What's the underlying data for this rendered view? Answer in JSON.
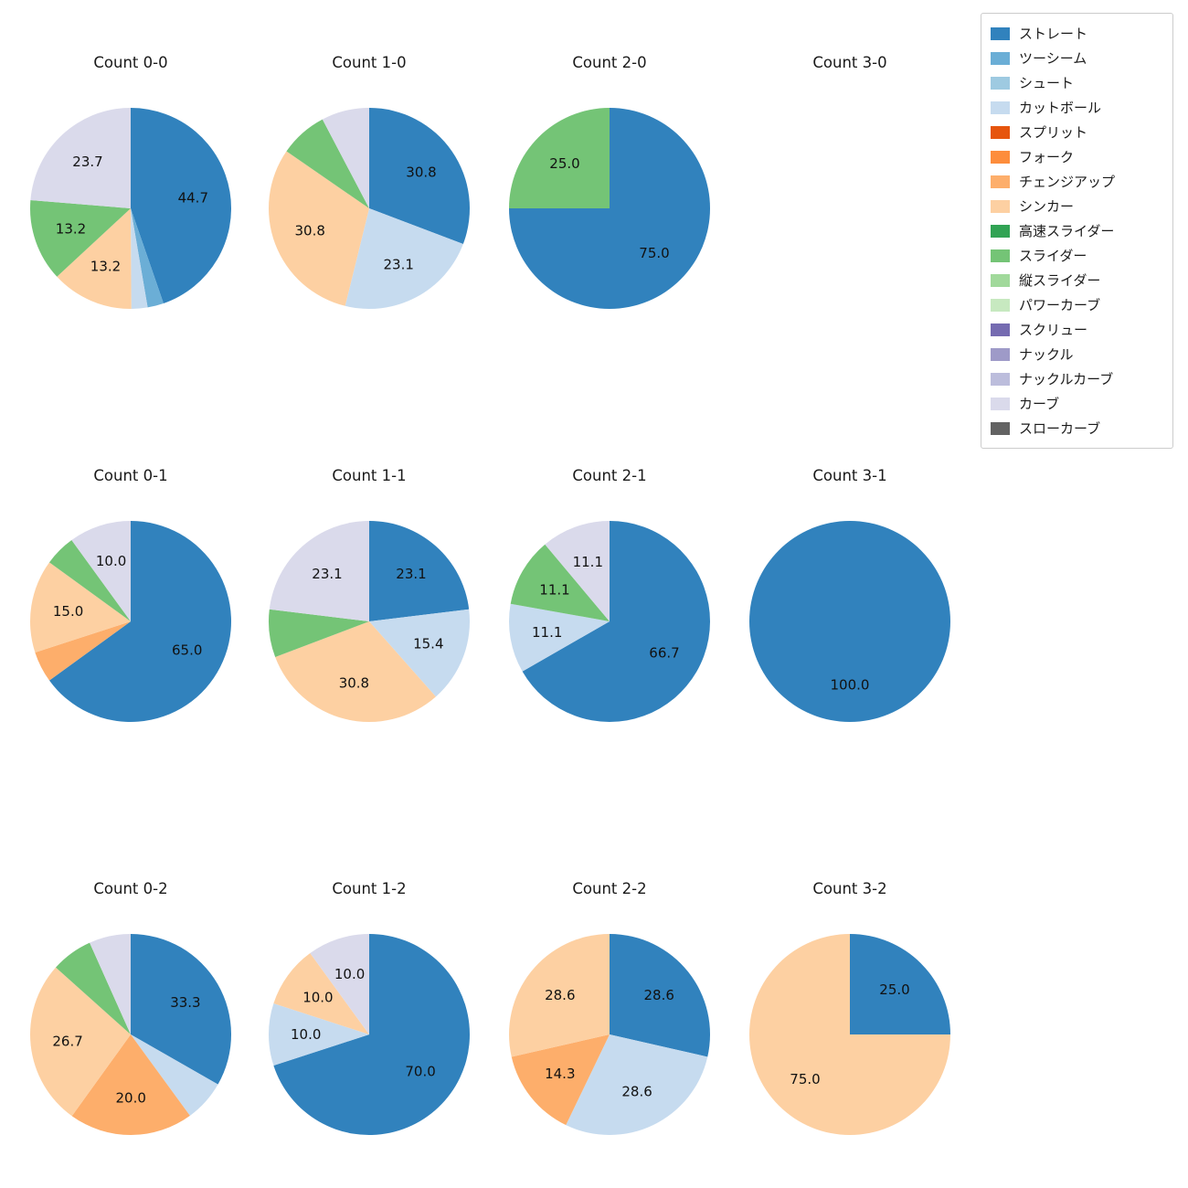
{
  "chart_data": {
    "type": "pie",
    "value_format": "percent",
    "layout": {
      "rows": 3,
      "cols": 4,
      "start_angle": "top",
      "direction": "clockwise",
      "legend_position": "upper right",
      "grid": false
    },
    "legend": [
      {
        "label": "ストレート",
        "color": "#3182bd"
      },
      {
        "label": "ツーシーム",
        "color": "#6baed6"
      },
      {
        "label": "シュート",
        "color": "#9ecae1"
      },
      {
        "label": "カットボール",
        "color": "#c6dbef"
      },
      {
        "label": "スプリット",
        "color": "#e6550d"
      },
      {
        "label": "フォーク",
        "color": "#fd8d3c"
      },
      {
        "label": "チェンジアップ",
        "color": "#fdae6b"
      },
      {
        "label": "シンカー",
        "color": "#fdd0a2"
      },
      {
        "label": "高速スライダー",
        "color": "#31a354"
      },
      {
        "label": "スライダー",
        "color": "#74c476"
      },
      {
        "label": "縦スライダー",
        "color": "#a1d99b"
      },
      {
        "label": "パワーカーブ",
        "color": "#c7e9c0"
      },
      {
        "label": "スクリュー",
        "color": "#756bb1"
      },
      {
        "label": "ナックル",
        "color": "#9e9ac8"
      },
      {
        "label": "ナックルカーブ",
        "color": "#bcbddc"
      },
      {
        "label": "カーブ",
        "color": "#dadaeb"
      },
      {
        "label": "スローカーブ",
        "color": "#636363"
      }
    ],
    "charts": [
      {
        "title": "Count 0-0",
        "slices": [
          {
            "name": "ストレート",
            "value": 44.7,
            "label": "44.7"
          },
          {
            "name": "ツーシーム",
            "value": 2.6,
            "label": ""
          },
          {
            "name": "カットボール",
            "value": 2.6,
            "label": ""
          },
          {
            "name": "シンカー",
            "value": 13.2,
            "label": "13.2"
          },
          {
            "name": "スライダー",
            "value": 13.2,
            "label": "13.2"
          },
          {
            "name": "カーブ",
            "value": 23.7,
            "label": "23.7"
          }
        ]
      },
      {
        "title": "Count 1-0",
        "slices": [
          {
            "name": "ストレート",
            "value": 30.8,
            "label": "30.8"
          },
          {
            "name": "カットボール",
            "value": 23.1,
            "label": "23.1"
          },
          {
            "name": "シンカー",
            "value": 30.8,
            "label": "30.8"
          },
          {
            "name": "スライダー",
            "value": 7.7,
            "label": ""
          },
          {
            "name": "カーブ",
            "value": 7.7,
            "label": ""
          }
        ]
      },
      {
        "title": "Count 2-0",
        "slices": [
          {
            "name": "ストレート",
            "value": 75.0,
            "label": "75.0"
          },
          {
            "name": "スライダー",
            "value": 25.0,
            "label": "25.0"
          }
        ]
      },
      {
        "title": "Count 3-0",
        "slices": []
      },
      {
        "title": "Count 0-1",
        "slices": [
          {
            "name": "ストレート",
            "value": 65.0,
            "label": "65.0"
          },
          {
            "name": "チェンジアップ",
            "value": 5.0,
            "label": ""
          },
          {
            "name": "シンカー",
            "value": 15.0,
            "label": "15.0"
          },
          {
            "name": "スライダー",
            "value": 5.0,
            "label": ""
          },
          {
            "name": "カーブ",
            "value": 10.0,
            "label": "10.0"
          }
        ]
      },
      {
        "title": "Count 1-1",
        "slices": [
          {
            "name": "ストレート",
            "value": 23.1,
            "label": "23.1"
          },
          {
            "name": "カットボール",
            "value": 15.4,
            "label": "15.4"
          },
          {
            "name": "シンカー",
            "value": 30.8,
            "label": "30.8"
          },
          {
            "name": "スライダー",
            "value": 7.7,
            "label": ""
          },
          {
            "name": "カーブ",
            "value": 23.1,
            "label": "23.1"
          }
        ]
      },
      {
        "title": "Count 2-1",
        "slices": [
          {
            "name": "ストレート",
            "value": 66.7,
            "label": "66.7"
          },
          {
            "name": "カットボール",
            "value": 11.1,
            "label": "11.1"
          },
          {
            "name": "スライダー",
            "value": 11.1,
            "label": "11.1"
          },
          {
            "name": "カーブ",
            "value": 11.1,
            "label": "11.1"
          }
        ]
      },
      {
        "title": "Count 3-1",
        "slices": [
          {
            "name": "ストレート",
            "value": 100.0,
            "label": "100.0"
          }
        ]
      },
      {
        "title": "Count 0-2",
        "slices": [
          {
            "name": "ストレート",
            "value": 33.3,
            "label": "33.3"
          },
          {
            "name": "カットボール",
            "value": 6.7,
            "label": ""
          },
          {
            "name": "チェンジアップ",
            "value": 20.0,
            "label": "20.0"
          },
          {
            "name": "シンカー",
            "value": 26.7,
            "label": "26.7"
          },
          {
            "name": "スライダー",
            "value": 6.7,
            "label": ""
          },
          {
            "name": "カーブ",
            "value": 6.7,
            "label": ""
          }
        ]
      },
      {
        "title": "Count 1-2",
        "slices": [
          {
            "name": "ストレート",
            "value": 70.0,
            "label": "70.0"
          },
          {
            "name": "カットボール",
            "value": 10.0,
            "label": "10.0"
          },
          {
            "name": "シンカー",
            "value": 10.0,
            "label": "10.0"
          },
          {
            "name": "カーブ",
            "value": 10.0,
            "label": "10.0"
          }
        ]
      },
      {
        "title": "Count 2-2",
        "slices": [
          {
            "name": "ストレート",
            "value": 28.6,
            "label": "28.6"
          },
          {
            "name": "カットボール",
            "value": 28.6,
            "label": "28.6"
          },
          {
            "name": "チェンジアップ",
            "value": 14.3,
            "label": "14.3"
          },
          {
            "name": "シンカー",
            "value": 28.6,
            "label": "28.6"
          }
        ]
      },
      {
        "title": "Count 3-2",
        "slices": [
          {
            "name": "ストレート",
            "value": 25.0,
            "label": "25.0"
          },
          {
            "name": "シンカー",
            "value": 75.0,
            "label": "75.0"
          }
        ]
      }
    ]
  }
}
